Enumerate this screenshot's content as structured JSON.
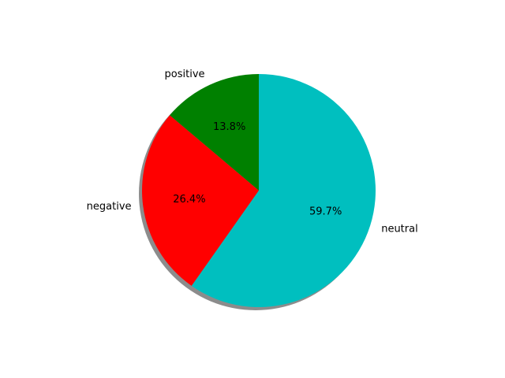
{
  "chart_data": {
    "type": "pie",
    "title": "",
    "slices": [
      {
        "label": "positive",
        "value": 13.8,
        "pct_label": "13.8%",
        "color": "#008000"
      },
      {
        "label": "negative",
        "value": 26.4,
        "pct_label": "26.4%",
        "color": "#ff0000"
      },
      {
        "label": "neutral",
        "value": 59.7,
        "pct_label": "59.7%",
        "color": "#00bfbf"
      }
    ],
    "start_angle_deg": 90,
    "direction": "counterclockwise",
    "shadow": true,
    "legend": "none"
  }
}
